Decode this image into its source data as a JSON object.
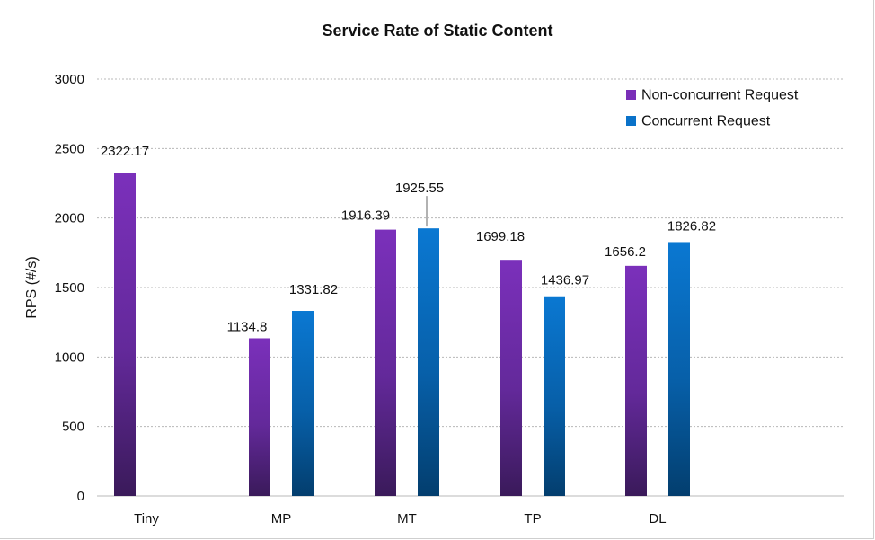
{
  "chart_data": {
    "type": "bar",
    "title": "Service Rate of Static Content",
    "xlabel": "",
    "ylabel": "RPS (#/s)",
    "ylim": [
      0,
      3000
    ],
    "yticks": [
      0,
      500,
      1000,
      1500,
      2000,
      2500,
      3000
    ],
    "grid": true,
    "legend_position": "top-right",
    "categories": [
      "Tiny",
      "MP",
      "MT",
      "TP",
      "DL"
    ],
    "series": [
      {
        "name": "Non-concurrent Request",
        "color": "#7a2fb8",
        "values": [
          2322.17,
          1134.8,
          1916.39,
          1699.18,
          1656.2
        ],
        "labels": [
          "2322.17",
          "1134.8",
          "1916.39",
          "1699.18",
          "1656.2"
        ]
      },
      {
        "name": "Concurrent Request",
        "color": "#0a72c9",
        "values": [
          null,
          1331.82,
          1925.55,
          1436.97,
          1826.82
        ],
        "labels": [
          "",
          "1331.82",
          "1925.55",
          "1436.97",
          "1826.82"
        ]
      }
    ]
  }
}
